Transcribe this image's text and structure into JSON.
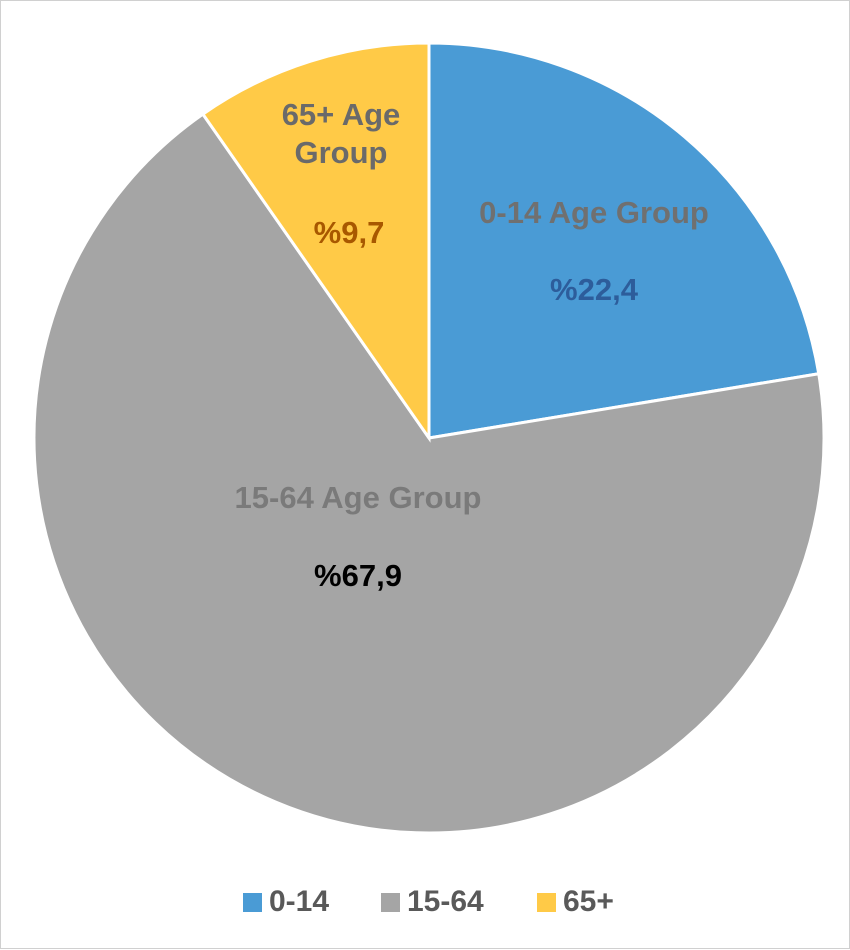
{
  "chart_data": {
    "type": "pie",
    "categories": [
      "0-14",
      "15-64",
      "65+"
    ],
    "labels": [
      "0-14 Age Group",
      "15-64 Age Group",
      "65+ Age Group"
    ],
    "values": [
      22.4,
      67.9,
      9.7
    ],
    "value_labels": [
      "%22,4",
      "%67,9",
      "%9,7"
    ],
    "colors": [
      "#4a9bd5",
      "#a5a5a5",
      "#ffca47"
    ],
    "label_colors": [
      "#707070",
      "#7a7a7a",
      "#6a6a6a"
    ],
    "value_label_colors": [
      "#2d5d9b",
      "#000000",
      "#a85800"
    ],
    "legend": "bottom"
  }
}
